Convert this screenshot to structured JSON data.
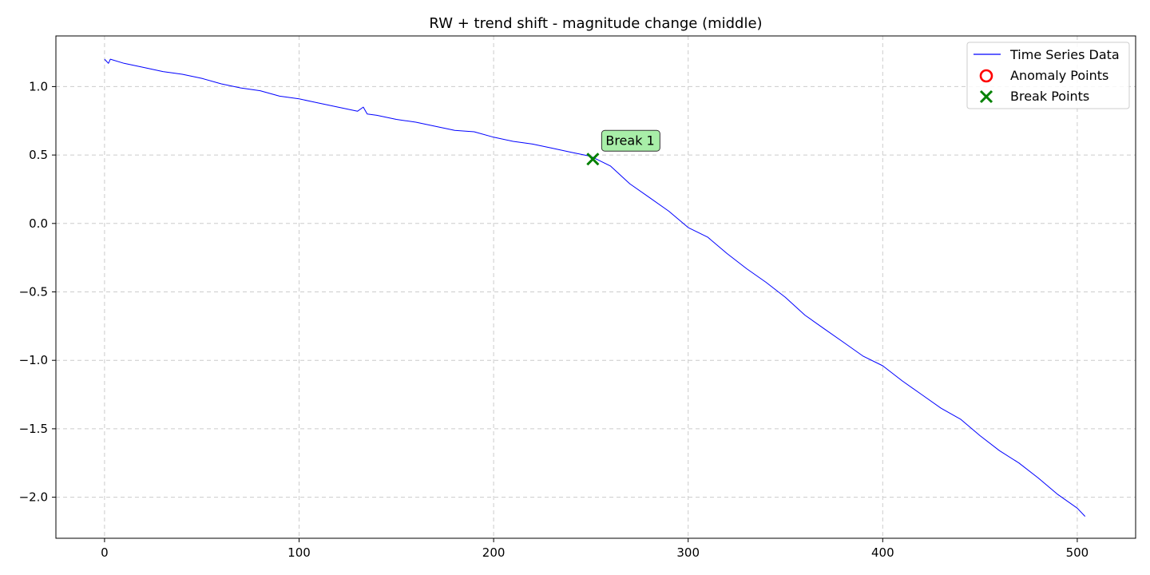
{
  "chart_data": {
    "type": "line",
    "title": "RW + trend shift - magnitude change (middle)",
    "xlabel": "",
    "ylabel": "",
    "xlim": [
      -25,
      530
    ],
    "ylim": [
      -2.3,
      1.37
    ],
    "x_ticks": [
      0,
      100,
      200,
      300,
      400,
      500
    ],
    "y_ticks": [
      1.0,
      0.5,
      0.0,
      -0.5,
      -1.0,
      -1.5,
      -2.0
    ],
    "x_tick_labels": [
      "0",
      "100",
      "200",
      "300",
      "400",
      "500"
    ],
    "y_tick_labels": [
      "1.0",
      "0.5",
      "0.0",
      "−0.5",
      "−1.0",
      "−1.5",
      "−2.0"
    ],
    "grid": true,
    "legend_position": "top-right",
    "series": [
      {
        "name": "Time Series Data",
        "color": "#0000ff",
        "points": [
          [
            0,
            1.2
          ],
          [
            2,
            1.17
          ],
          [
            3,
            1.2
          ],
          [
            10,
            1.17
          ],
          [
            20,
            1.14
          ],
          [
            30,
            1.11
          ],
          [
            40,
            1.09
          ],
          [
            50,
            1.06
          ],
          [
            60,
            1.02
          ],
          [
            70,
            0.99
          ],
          [
            80,
            0.97
          ],
          [
            90,
            0.93
          ],
          [
            100,
            0.91
          ],
          [
            110,
            0.88
          ],
          [
            120,
            0.85
          ],
          [
            130,
            0.82
          ],
          [
            133,
            0.85
          ],
          [
            135,
            0.8
          ],
          [
            140,
            0.79
          ],
          [
            150,
            0.76
          ],
          [
            160,
            0.74
          ],
          [
            170,
            0.71
          ],
          [
            180,
            0.68
          ],
          [
            190,
            0.67
          ],
          [
            200,
            0.63
          ],
          [
            210,
            0.6
          ],
          [
            220,
            0.58
          ],
          [
            230,
            0.55
          ],
          [
            240,
            0.52
          ],
          [
            250,
            0.49
          ],
          [
            260,
            0.42
          ],
          [
            270,
            0.29
          ],
          [
            280,
            0.19
          ],
          [
            290,
            0.09
          ],
          [
            300,
            -0.03
          ],
          [
            310,
            -0.1
          ],
          [
            320,
            -0.22
          ],
          [
            330,
            -0.33
          ],
          [
            340,
            -0.43
          ],
          [
            350,
            -0.54
          ],
          [
            360,
            -0.67
          ],
          [
            370,
            -0.77
          ],
          [
            380,
            -0.87
          ],
          [
            390,
            -0.97
          ],
          [
            400,
            -1.04
          ],
          [
            410,
            -1.15
          ],
          [
            420,
            -1.25
          ],
          [
            430,
            -1.35
          ],
          [
            440,
            -1.43
          ],
          [
            450,
            -1.55
          ],
          [
            460,
            -1.66
          ],
          [
            470,
            -1.75
          ],
          [
            480,
            -1.86
          ],
          [
            490,
            -1.98
          ],
          [
            500,
            -2.08
          ],
          [
            504,
            -2.14
          ]
        ]
      }
    ],
    "anomaly_points": [],
    "break_points": [
      {
        "x": 251,
        "y": 0.47,
        "label": "Break 1",
        "color": "#008000"
      }
    ],
    "legend": [
      {
        "label": "Time Series Data",
        "marker": "line",
        "color": "#0000ff"
      },
      {
        "label": "Anomaly Points",
        "marker": "circle",
        "color": "#ff0000"
      },
      {
        "label": "Break Points",
        "marker": "x",
        "color": "#008000"
      }
    ],
    "annotation_box_color": "#a8eea8"
  }
}
